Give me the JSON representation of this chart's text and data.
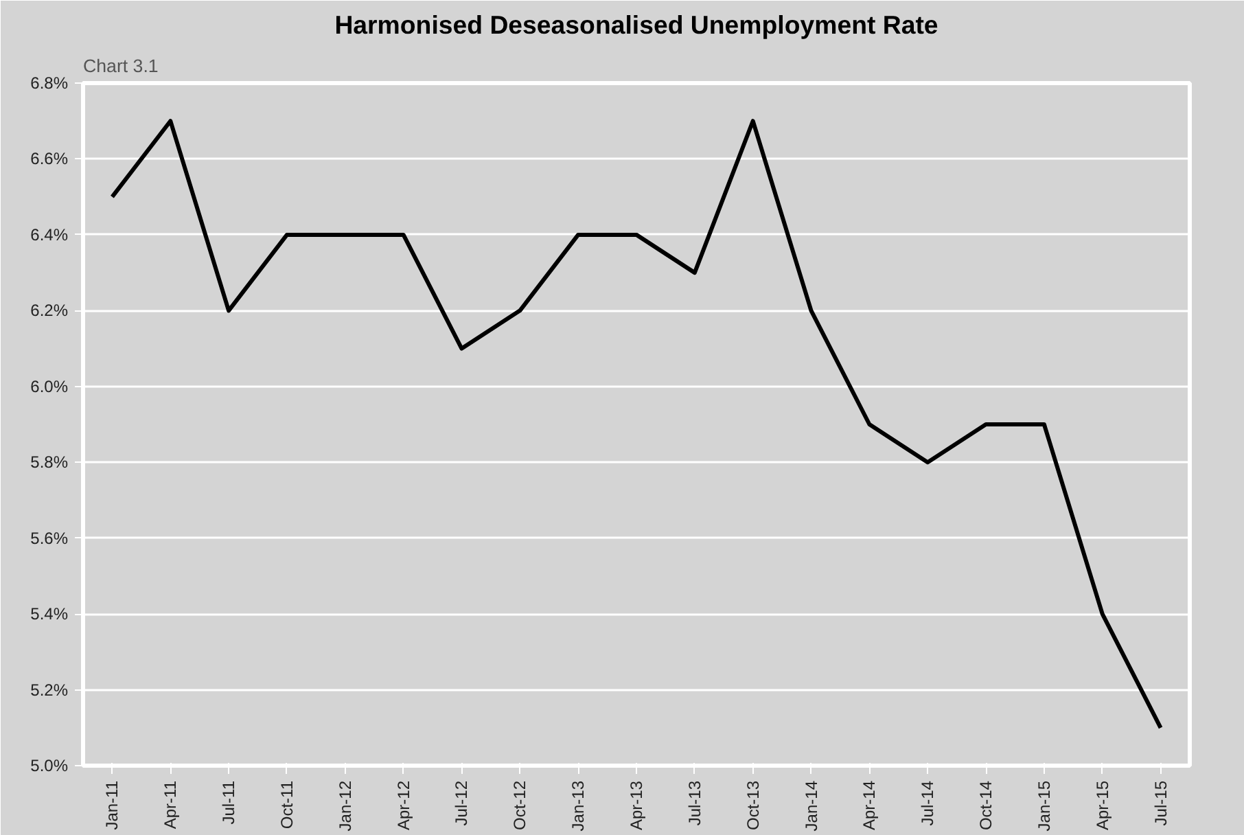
{
  "chart_data": {
    "type": "line",
    "title": "Harmonised Deseasonalised Unemployment Rate",
    "annotations": [
      "Chart 3.1"
    ],
    "categories": [
      "Jan-11",
      "Apr-11",
      "Jul-11",
      "Oct-11",
      "Jan-12",
      "Apr-12",
      "Jul-12",
      "Oct-12",
      "Jan-13",
      "Apr-13",
      "Jul-13",
      "Oct-13",
      "Jan-14",
      "Apr-14",
      "Jul-14",
      "Oct-14",
      "Jan-15",
      "Apr-15",
      "Jul-15"
    ],
    "series": [
      {
        "color": "#000000",
        "values": [
          6.5,
          6.7,
          6.2,
          6.4,
          6.4,
          6.4,
          6.1,
          6.2,
          6.4,
          6.4,
          6.3,
          6.7,
          6.2,
          5.9,
          5.8,
          5.9,
          5.9,
          5.4,
          5.1
        ]
      }
    ],
    "ylim": [
      5.0,
      6.8
    ],
    "yticks": [
      {
        "value": 5.0,
        "label": "5.0%"
      },
      {
        "value": 5.2,
        "label": "5.2%"
      },
      {
        "value": 5.4,
        "label": "5.4%"
      },
      {
        "value": 5.6,
        "label": "5.6%"
      },
      {
        "value": 5.8,
        "label": "5.8%"
      },
      {
        "value": 6.0,
        "label": "6.0%"
      },
      {
        "value": 6.2,
        "label": "6.2%"
      },
      {
        "value": 6.4,
        "label": "6.4%"
      },
      {
        "value": 6.6,
        "label": "6.6%"
      },
      {
        "value": 6.8,
        "label": "6.8%"
      }
    ],
    "grid": "y",
    "marker": "none",
    "line_style": "solid"
  }
}
